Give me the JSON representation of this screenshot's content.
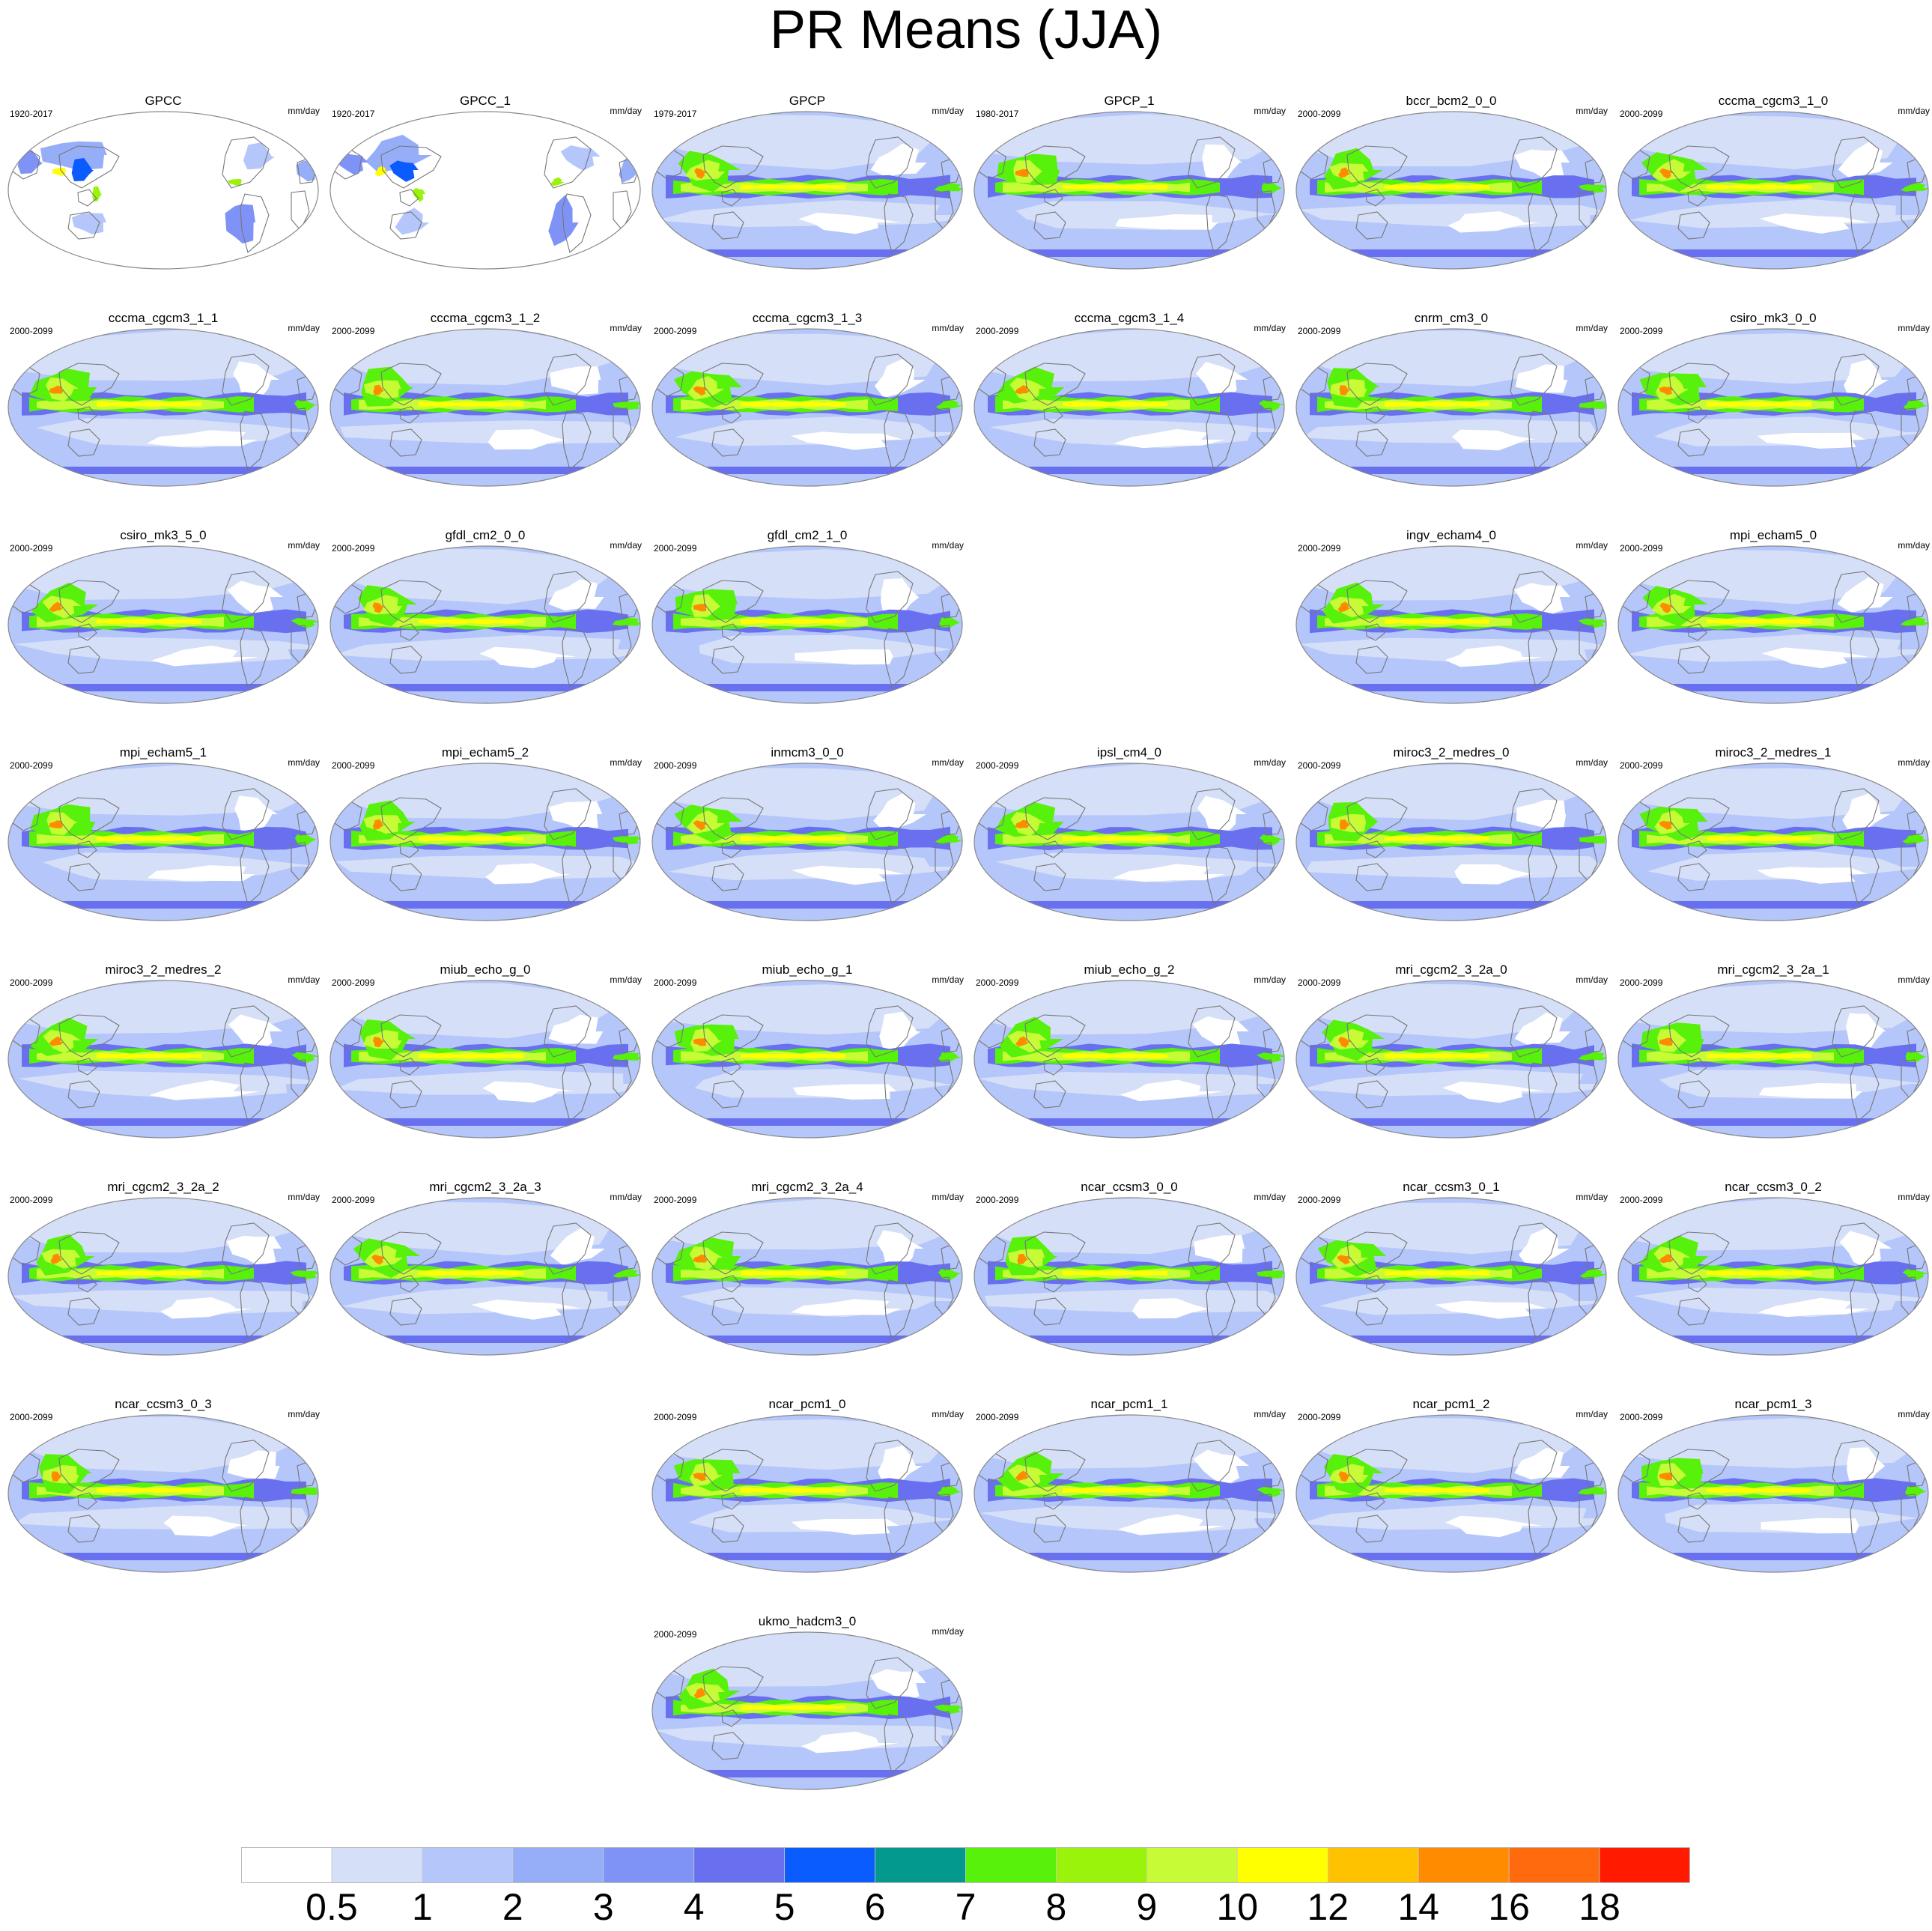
{
  "title": "PR Means (JJA)",
  "units_label": "mm/day",
  "colors": {
    "levels": [
      0.5,
      1,
      2,
      3,
      4,
      5,
      6,
      7,
      8,
      9,
      10,
      12,
      14,
      16,
      18
    ],
    "fills": [
      "#ffffff",
      "#d6dff8",
      "#b4c6fa",
      "#96adf8",
      "#7f93f6",
      "#6870f0",
      "#0b5cff",
      "#04998f",
      "#57f10b",
      "#9af30a",
      "#c6fb35",
      "#ffff00",
      "#ffc200",
      "#ff8c00",
      "#ff6a0f",
      "#ff1a00"
    ],
    "coastline": "#777777",
    "map_edge": "#888888"
  },
  "panels": [
    {
      "name": "GPCC",
      "period": "1920-2017",
      "row": 0,
      "col": 0,
      "land_only": true
    },
    {
      "name": "GPCC_1",
      "period": "1920-2017",
      "row": 0,
      "col": 1,
      "land_only": true
    },
    {
      "name": "GPCP",
      "period": "1979-2017",
      "row": 0,
      "col": 2
    },
    {
      "name": "GPCP_1",
      "period": "1980-2017",
      "row": 0,
      "col": 3
    },
    {
      "name": "bccr_bcm2_0_0",
      "period": "2000-2099",
      "row": 0,
      "col": 4
    },
    {
      "name": "cccma_cgcm3_1_0",
      "period": "2000-2099",
      "row": 0,
      "col": 5
    },
    {
      "name": "cccma_cgcm3_1_1",
      "period": "2000-2099",
      "row": 1,
      "col": 0
    },
    {
      "name": "cccma_cgcm3_1_2",
      "period": "2000-2099",
      "row": 1,
      "col": 1
    },
    {
      "name": "cccma_cgcm3_1_3",
      "period": "2000-2099",
      "row": 1,
      "col": 2
    },
    {
      "name": "cccma_cgcm3_1_4",
      "period": "2000-2099",
      "row": 1,
      "col": 3
    },
    {
      "name": "cnrm_cm3_0",
      "period": "2000-2099",
      "row": 1,
      "col": 4
    },
    {
      "name": "csiro_mk3_0_0",
      "period": "2000-2099",
      "row": 1,
      "col": 5
    },
    {
      "name": "csiro_mk3_5_0",
      "period": "2000-2099",
      "row": 2,
      "col": 0
    },
    {
      "name": "gfdl_cm2_0_0",
      "period": "2000-2099",
      "row": 2,
      "col": 1
    },
    {
      "name": "gfdl_cm2_1_0",
      "period": "2000-2099",
      "row": 2,
      "col": 2
    },
    {
      "name": "ingv_echam4_0",
      "period": "2000-2099",
      "row": 2,
      "col": 4
    },
    {
      "name": "mpi_echam5_0",
      "period": "2000-2099",
      "row": 2,
      "col": 5
    },
    {
      "name": "mpi_echam5_1",
      "period": "2000-2099",
      "row": 3,
      "col": 0
    },
    {
      "name": "mpi_echam5_2",
      "period": "2000-2099",
      "row": 3,
      "col": 1
    },
    {
      "name": "inmcm3_0_0",
      "period": "2000-2099",
      "row": 3,
      "col": 2
    },
    {
      "name": "ipsl_cm4_0",
      "period": "2000-2099",
      "row": 3,
      "col": 3
    },
    {
      "name": "miroc3_2_medres_0",
      "period": "2000-2099",
      "row": 3,
      "col": 4
    },
    {
      "name": "miroc3_2_medres_1",
      "period": "2000-2099",
      "row": 3,
      "col": 5
    },
    {
      "name": "miroc3_2_medres_2",
      "period": "2000-2099",
      "row": 4,
      "col": 0
    },
    {
      "name": "miub_echo_g_0",
      "period": "2000-2099",
      "row": 4,
      "col": 1
    },
    {
      "name": "miub_echo_g_1",
      "period": "2000-2099",
      "row": 4,
      "col": 2
    },
    {
      "name": "miub_echo_g_2",
      "period": "2000-2099",
      "row": 4,
      "col": 3
    },
    {
      "name": "mri_cgcm2_3_2a_0",
      "period": "2000-2099",
      "row": 4,
      "col": 4
    },
    {
      "name": "mri_cgcm2_3_2a_1",
      "period": "2000-2099",
      "row": 4,
      "col": 5
    },
    {
      "name": "mri_cgcm2_3_2a_2",
      "period": "2000-2099",
      "row": 5,
      "col": 0
    },
    {
      "name": "mri_cgcm2_3_2a_3",
      "period": "2000-2099",
      "row": 5,
      "col": 1
    },
    {
      "name": "mri_cgcm2_3_2a_4",
      "period": "2000-2099",
      "row": 5,
      "col": 2
    },
    {
      "name": "ncar_ccsm3_0_0",
      "period": "2000-2099",
      "row": 5,
      "col": 3
    },
    {
      "name": "ncar_ccsm3_0_1",
      "period": "2000-2099",
      "row": 5,
      "col": 4
    },
    {
      "name": "ncar_ccsm3_0_2",
      "period": "2000-2099",
      "row": 5,
      "col": 5
    },
    {
      "name": "ncar_ccsm3_0_3",
      "period": "2000-2099",
      "row": 6,
      "col": 0
    },
    {
      "name": "ncar_pcm1_0",
      "period": "2000-2099",
      "row": 6,
      "col": 2
    },
    {
      "name": "ncar_pcm1_1",
      "period": "2000-2099",
      "row": 6,
      "col": 3
    },
    {
      "name": "ncar_pcm1_2",
      "period": "2000-2099",
      "row": 6,
      "col": 4
    },
    {
      "name": "ncar_pcm1_3",
      "period": "2000-2099",
      "row": 6,
      "col": 5
    },
    {
      "name": "ukmo_hadcm3_0",
      "period": "2000-2099",
      "row": 7,
      "col": 2
    }
  ],
  "chart_data": {
    "type": "heatmap",
    "title": "PR Means (JJA)",
    "variable": "PR",
    "season": "JJA",
    "units": "mm/day",
    "colorbar_ticks": [
      "0.5",
      "1",
      "2",
      "3",
      "4",
      "5",
      "6",
      "7",
      "8",
      "9",
      "10",
      "12",
      "14",
      "16",
      "18"
    ],
    "colorbar_levels": [
      0.5,
      1,
      2,
      3,
      4,
      5,
      6,
      7,
      8,
      9,
      10,
      12,
      14,
      16,
      18
    ],
    "layout": {
      "rows": 8,
      "cols": 6
    },
    "projection": "Robinson (Pacific-centered)",
    "panel_count": 41
  }
}
